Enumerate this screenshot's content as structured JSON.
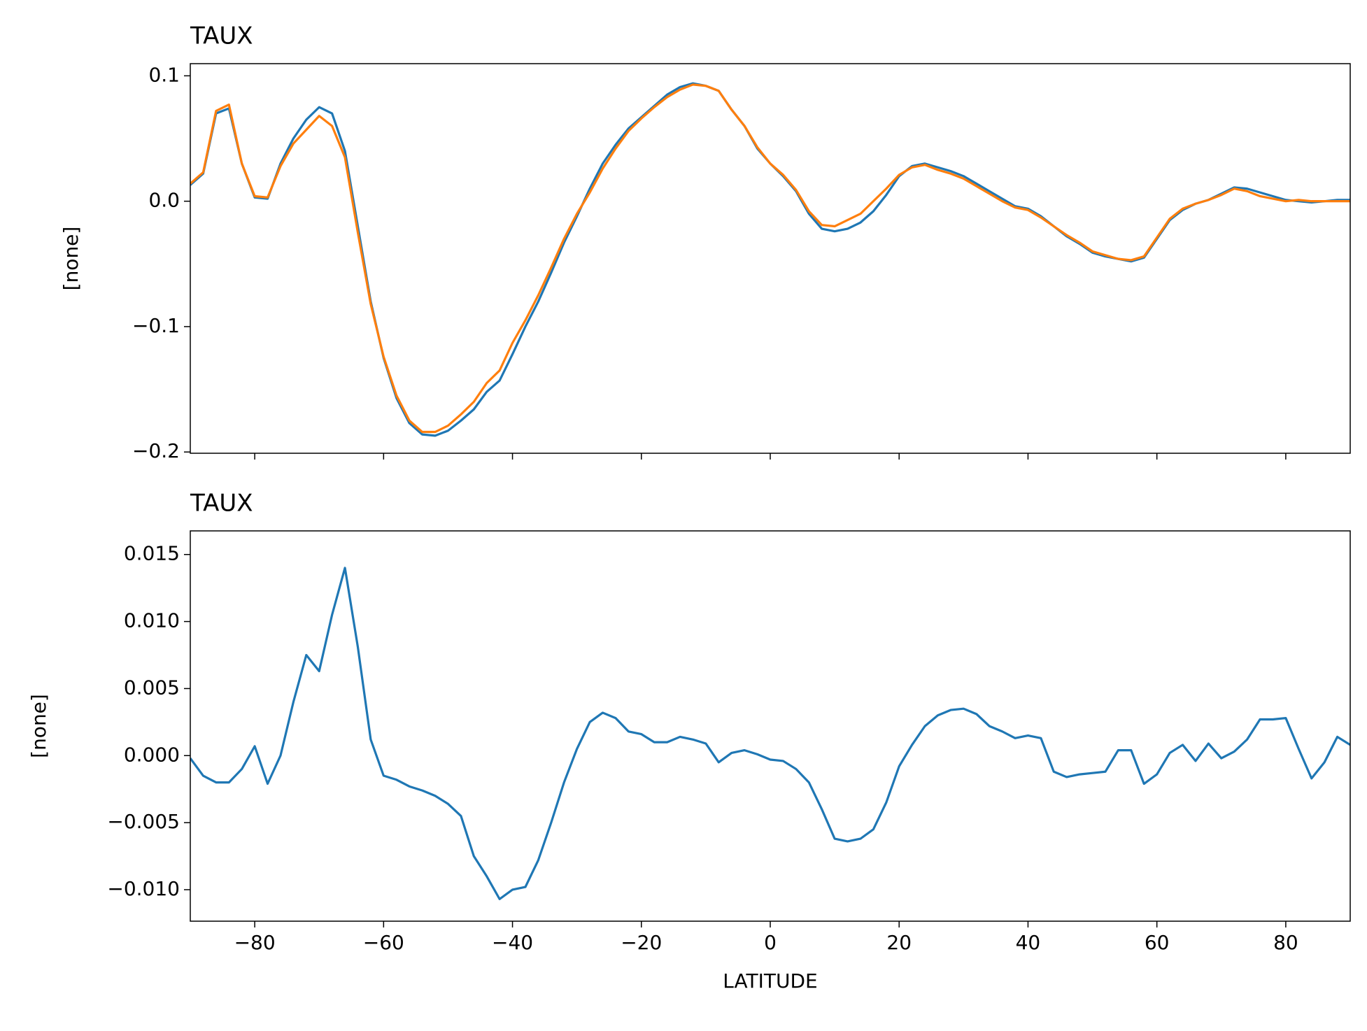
{
  "chart_data": [
    {
      "type": "line",
      "title": "TAUX",
      "ylabel": "[none]",
      "x": [
        -90,
        -88,
        -86,
        -84,
        -82,
        -80,
        -78,
        -76,
        -74,
        -72,
        -70,
        -68,
        -66,
        -64,
        -62,
        -60,
        -58,
        -56,
        -54,
        -52,
        -50,
        -48,
        -46,
        -44,
        -42,
        -40,
        -38,
        -36,
        -34,
        -32,
        -30,
        -28,
        -26,
        -24,
        -22,
        -20,
        -18,
        -16,
        -14,
        -12,
        -10,
        -8,
        -6,
        -4,
        -2,
        0,
        2,
        4,
        6,
        8,
        10,
        12,
        14,
        16,
        18,
        20,
        22,
        24,
        26,
        28,
        30,
        32,
        34,
        36,
        38,
        40,
        42,
        44,
        46,
        48,
        50,
        52,
        54,
        56,
        58,
        60,
        62,
        64,
        66,
        68,
        70,
        72,
        74,
        76,
        78,
        80,
        82,
        84,
        86,
        88,
        90
      ],
      "series": [
        {
          "color": "#1f77b4",
          "values": [
            0.013,
            0.022,
            0.07,
            0.074,
            0.03,
            0.003,
            0.002,
            0.03,
            0.05,
            0.065,
            0.075,
            0.07,
            0.04,
            -0.02,
            -0.08,
            -0.125,
            -0.157,
            -0.177,
            -0.186,
            -0.187,
            -0.183,
            -0.175,
            -0.166,
            -0.152,
            -0.143,
            -0.122,
            -0.1,
            -0.08,
            -0.057,
            -0.033,
            -0.012,
            0.01,
            0.03,
            0.045,
            0.058,
            0.067,
            0.076,
            0.085,
            0.091,
            0.094,
            0.092,
            0.088,
            0.073,
            0.06,
            0.042,
            0.03,
            0.02,
            0.008,
            -0.01,
            -0.022,
            -0.024,
            -0.022,
            -0.017,
            -0.008,
            0.005,
            0.02,
            0.028,
            0.03,
            0.027,
            0.024,
            0.02,
            0.014,
            0.008,
            0.002,
            -0.004,
            -0.006,
            -0.012,
            -0.02,
            -0.028,
            -0.034,
            -0.041,
            -0.044,
            -0.046,
            -0.048,
            -0.045,
            -0.03,
            -0.015,
            -0.007,
            -0.002,
            0.001,
            0.006,
            0.011,
            0.01,
            0.007,
            0.004,
            0.001,
            0.0,
            -0.001,
            0.0,
            0.001,
            0.001
          ]
        },
        {
          "color": "#ff7f0e",
          "values": [
            0.014,
            0.023,
            0.072,
            0.077,
            0.03,
            0.004,
            0.003,
            0.028,
            0.046,
            0.057,
            0.068,
            0.06,
            0.035,
            -0.025,
            -0.082,
            -0.124,
            -0.155,
            -0.175,
            -0.184,
            -0.184,
            -0.179,
            -0.17,
            -0.16,
            -0.145,
            -0.135,
            -0.113,
            -0.095,
            -0.075,
            -0.053,
            -0.03,
            -0.01,
            0.007,
            0.026,
            0.042,
            0.056,
            0.066,
            0.075,
            0.083,
            0.089,
            0.093,
            0.092,
            0.088,
            0.073,
            0.06,
            0.043,
            0.03,
            0.021,
            0.009,
            -0.008,
            -0.019,
            -0.02,
            -0.015,
            -0.01,
            0.0,
            0.01,
            0.021,
            0.027,
            0.029,
            0.025,
            0.022,
            0.018,
            0.012,
            0.006,
            0.0,
            -0.005,
            -0.007,
            -0.013,
            -0.02,
            -0.027,
            -0.033,
            -0.04,
            -0.043,
            -0.046,
            -0.047,
            -0.044,
            -0.029,
            -0.014,
            -0.006,
            -0.002,
            0.001,
            0.005,
            0.01,
            0.008,
            0.004,
            0.002,
            0.0,
            0.001,
            0.0,
            0.0,
            0.0,
            0.0
          ]
        }
      ],
      "xlim": [
        -90,
        90
      ],
      "xticks": [
        -80,
        -60,
        -40,
        -20,
        0,
        20,
        40,
        60,
        80
      ],
      "show_xticklabels": false,
      "ylim": [
        -0.201,
        0.1097
      ],
      "yticks": [
        {
          "value": -0.2,
          "label": "−0.2"
        },
        {
          "value": -0.1,
          "label": "−0.1"
        },
        {
          "value": 0,
          "label": "0.0"
        },
        0.1
      ]
    },
    {
      "type": "line",
      "title": "TAUX",
      "ylabel": "[none]",
      "xlabel": "LATITUDE",
      "x": [
        -90,
        -88,
        -86,
        -84,
        -82,
        -80,
        -78,
        -76,
        -74,
        -72,
        -70,
        -68,
        -66,
        -64,
        -62,
        -60,
        -58,
        -56,
        -54,
        -52,
        -50,
        -48,
        -46,
        -44,
        -42,
        -40,
        -38,
        -36,
        -34,
        -32,
        -30,
        -28,
        -26,
        -24,
        -22,
        -20,
        -18,
        -16,
        -14,
        -12,
        -10,
        -8,
        -6,
        -4,
        -2,
        0,
        2,
        4,
        6,
        8,
        10,
        12,
        14,
        16,
        18,
        20,
        22,
        24,
        26,
        28,
        30,
        32,
        34,
        36,
        38,
        40,
        42,
        44,
        46,
        48,
        50,
        52,
        54,
        56,
        58,
        60,
        62,
        64,
        66,
        68,
        70,
        72,
        74,
        76,
        78,
        80,
        82,
        84,
        86,
        88,
        90
      ],
      "series": [
        {
          "color": "#1f77b4",
          "values": [
            -0.0002,
            -0.0015,
            -0.002,
            -0.002,
            -0.001,
            0.0007,
            -0.0021,
            0.0,
            0.004,
            0.0075,
            0.0063,
            0.0105,
            0.014,
            0.0081,
            0.0012,
            -0.0015,
            -0.0018,
            -0.0023,
            -0.0026,
            -0.003,
            -0.0036,
            -0.0045,
            -0.0075,
            -0.009,
            -0.0107,
            -0.01,
            -0.0098,
            -0.0078,
            -0.005,
            -0.002,
            0.0005,
            0.0025,
            0.0032,
            0.0028,
            0.0018,
            0.0016,
            0.001,
            0.001,
            0.0014,
            0.0012,
            0.0009,
            -0.0005,
            0.0002,
            0.0004,
            0.0001,
            -0.0003,
            -0.0004,
            -0.001,
            -0.002,
            -0.004,
            -0.0062,
            -0.0064,
            -0.0062,
            -0.0055,
            -0.0035,
            -0.0008,
            0.0008,
            0.0022,
            0.003,
            0.0034,
            0.0035,
            0.0031,
            0.0022,
            0.0018,
            0.0013,
            0.0015,
            0.0013,
            -0.0012,
            -0.0016,
            -0.0014,
            -0.0013,
            -0.0012,
            0.0004,
            0.0004,
            -0.0021,
            -0.0014,
            0.0002,
            0.0008,
            -0.0004,
            0.0009,
            -0.0002,
            0.0003,
            0.0012,
            0.0027,
            0.0027,
            0.0028,
            0.0005,
            -0.0017,
            -0.0005,
            0.0014,
            0.0008
          ]
        }
      ],
      "xlim": [
        -90,
        90
      ],
      "xticks": [
        {
          "value": -80,
          "label": "−80"
        },
        {
          "value": -60,
          "label": "−60"
        },
        {
          "value": -40,
          "label": "−40"
        },
        {
          "value": -20,
          "label": "−20"
        },
        0,
        20,
        40,
        60,
        80
      ],
      "show_xticklabels": true,
      "ylim": [
        -0.01235,
        0.01676
      ],
      "yticks": [
        {
          "value": -0.01,
          "label": "−0.010"
        },
        {
          "value": -0.005,
          "label": "−0.005"
        },
        {
          "value": 0,
          "label": "0.000"
        },
        0.005,
        {
          "value": 0.01,
          "label": "0.010"
        },
        0.015
      ]
    }
  ]
}
